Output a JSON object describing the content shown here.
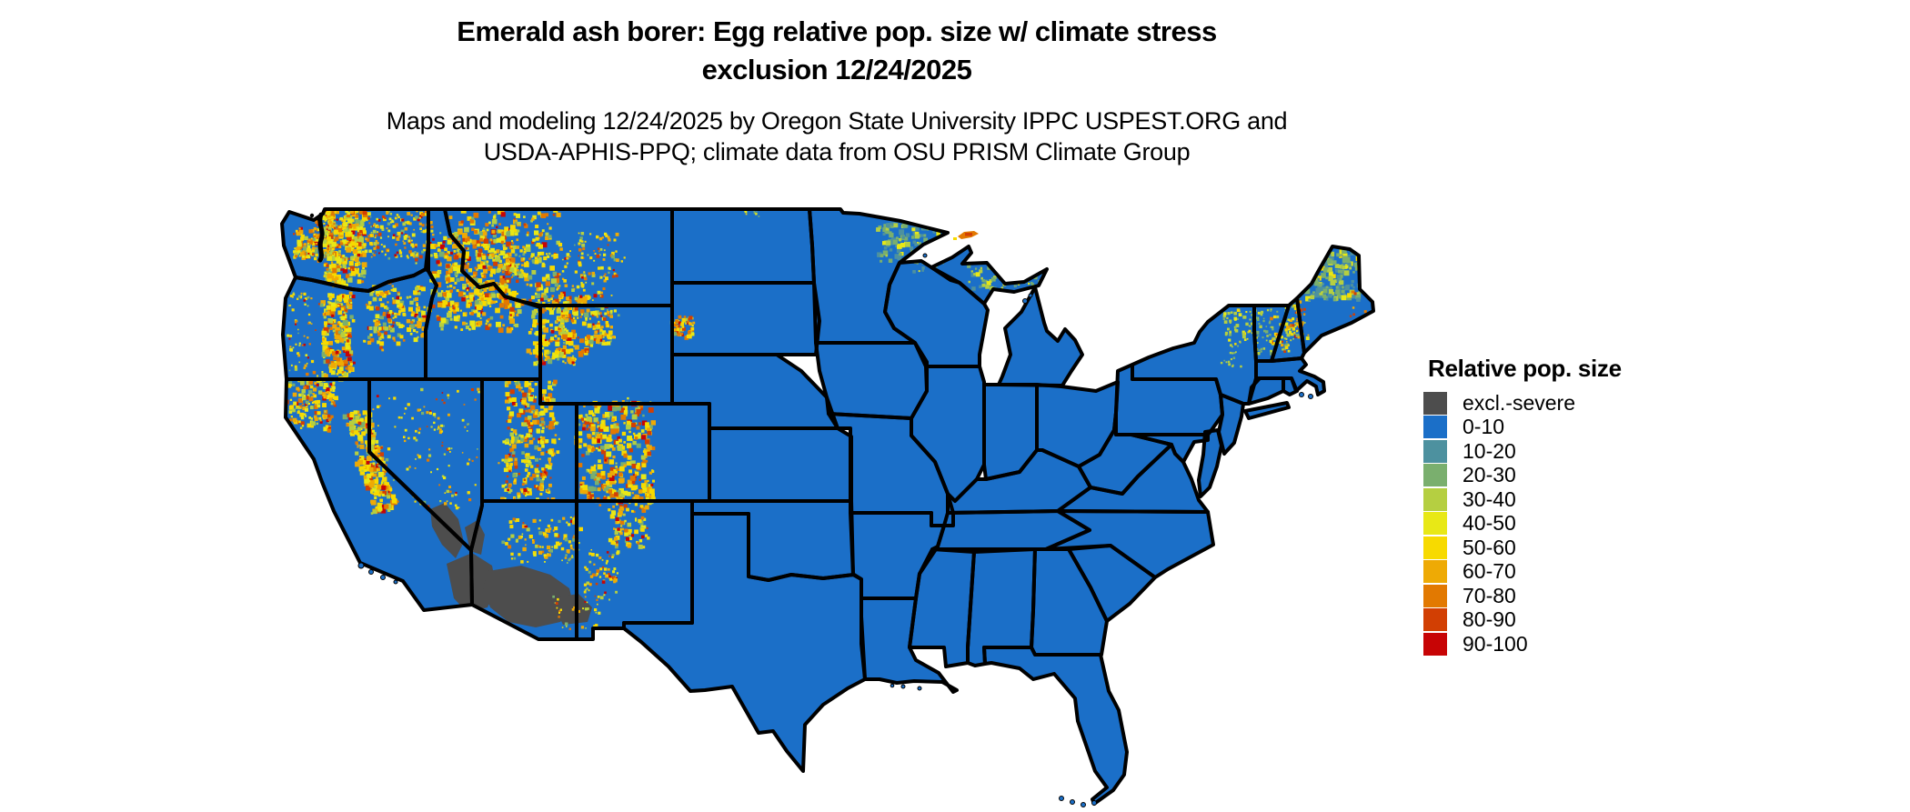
{
  "header": {
    "title_line1": "Emerald ash borer: Egg relative pop. size w/ climate stress",
    "title_line2": "exclusion 12/24/2025",
    "subtitle_line1": "Maps and modeling 12/24/2025 by Oregon State University IPPC USPEST.ORG and",
    "subtitle_line2": "USDA-APHIS-PPQ; climate data from OSU PRISM Climate Group"
  },
  "legend": {
    "title": "Relative pop. size",
    "items": [
      {
        "label": "excl.-severe",
        "color": "#4d4d4d"
      },
      {
        "label": "0-10",
        "color": "#1b6fc8"
      },
      {
        "label": "10-20",
        "color": "#4d919f"
      },
      {
        "label": "20-30",
        "color": "#7aaf6e"
      },
      {
        "label": "30-40",
        "color": "#b5cf41"
      },
      {
        "label": "40-50",
        "color": "#e8e816"
      },
      {
        "label": "50-60",
        "color": "#f7da00"
      },
      {
        "label": "60-70",
        "color": "#eeaa05"
      },
      {
        "label": "70-80",
        "color": "#e27901"
      },
      {
        "label": "80-90",
        "color": "#d23f03"
      },
      {
        "label": "90-100",
        "color": "#c70405"
      }
    ]
  },
  "map": {
    "type": "raster-choropleth",
    "region": "Contiguous United States",
    "background_color": "#ffffff",
    "state_border_color": "#000000",
    "base_fill_label": "0-10",
    "base_fill_color": "#1b6fc8",
    "excluded_region": {
      "label": "excl.-severe",
      "color": "#4d4d4d",
      "area": "southwestern Arizona and southeastern California deserts"
    },
    "elevated_regions": [
      "Cascades (WA, OR)",
      "Olympic Mountains",
      "Idaho Rockies",
      "Western Montana",
      "Yellowstone / Wind River / Bighorn (WY)",
      "Wasatch and plateaus (UT)",
      "Colorado Rockies",
      "Sierra Nevada and Klamath (CA)",
      "Nevada ranges",
      "Mogollon Rim (AZ)",
      "Sangre de Cristo / Gila (NM)",
      "Black Hills (SD)",
      "northern Minnesota arrowhead",
      "Michigan Upper Peninsula",
      "northern Maine",
      "White Mountains (NH)",
      "Adirondacks (NY)",
      "Isle Royale"
    ]
  }
}
